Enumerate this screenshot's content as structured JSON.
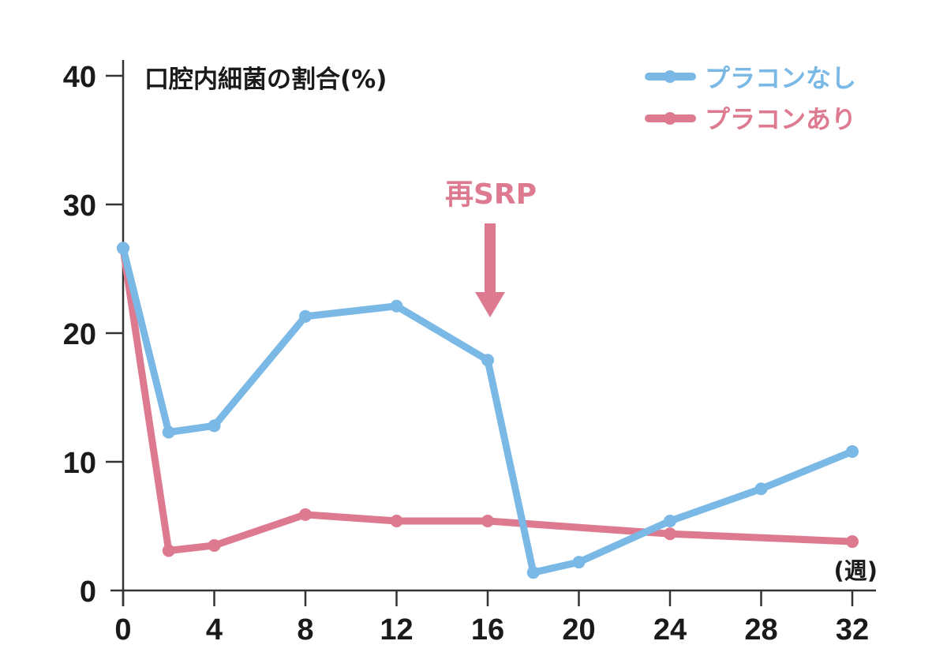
{
  "chart_data": {
    "type": "line",
    "title": "口腔内細菌の割合(%)",
    "xlabel": "(週)",
    "ylabel": "口腔内細菌の割合(%)",
    "xlim": [
      0,
      32
    ],
    "ylim": [
      0,
      40
    ],
    "x_ticks": [
      0,
      4,
      8,
      12,
      16,
      20,
      24,
      28,
      32
    ],
    "y_ticks": [
      0,
      10,
      20,
      30,
      40
    ],
    "grid": false,
    "legend_position": "top-right",
    "series": [
      {
        "name": "プラコンなし",
        "color": "#7ab8e6",
        "x": [
          0,
          2,
          4,
          8,
          12,
          16,
          18,
          20,
          24,
          28,
          32
        ],
        "values": [
          26.6,
          12.3,
          12.8,
          21.3,
          22.1,
          17.9,
          1.4,
          2.2,
          5.4,
          7.9,
          10.8
        ]
      },
      {
        "name": "プラコンあり",
        "color": "#dd7a90",
        "x": [
          0,
          2,
          4,
          8,
          12,
          16,
          24,
          32
        ],
        "values": [
          26.6,
          3.1,
          3.5,
          5.9,
          5.4,
          5.4,
          4.4,
          3.8
        ]
      }
    ],
    "annotations": [
      {
        "text": "再SRP",
        "x": 16,
        "type": "arrow-down",
        "color": "#dd7a90"
      }
    ]
  },
  "legend": {
    "items": [
      {
        "label": "プラコンなし",
        "color": "#7ab8e6"
      },
      {
        "label": "プラコンあり",
        "color": "#dd7a90"
      }
    ]
  },
  "axis": {
    "title": "口腔内細菌の割合(%)",
    "x_unit": "(週)",
    "color": "#333333"
  },
  "annotation": {
    "label": "再SRP",
    "color": "#dd7a90"
  }
}
